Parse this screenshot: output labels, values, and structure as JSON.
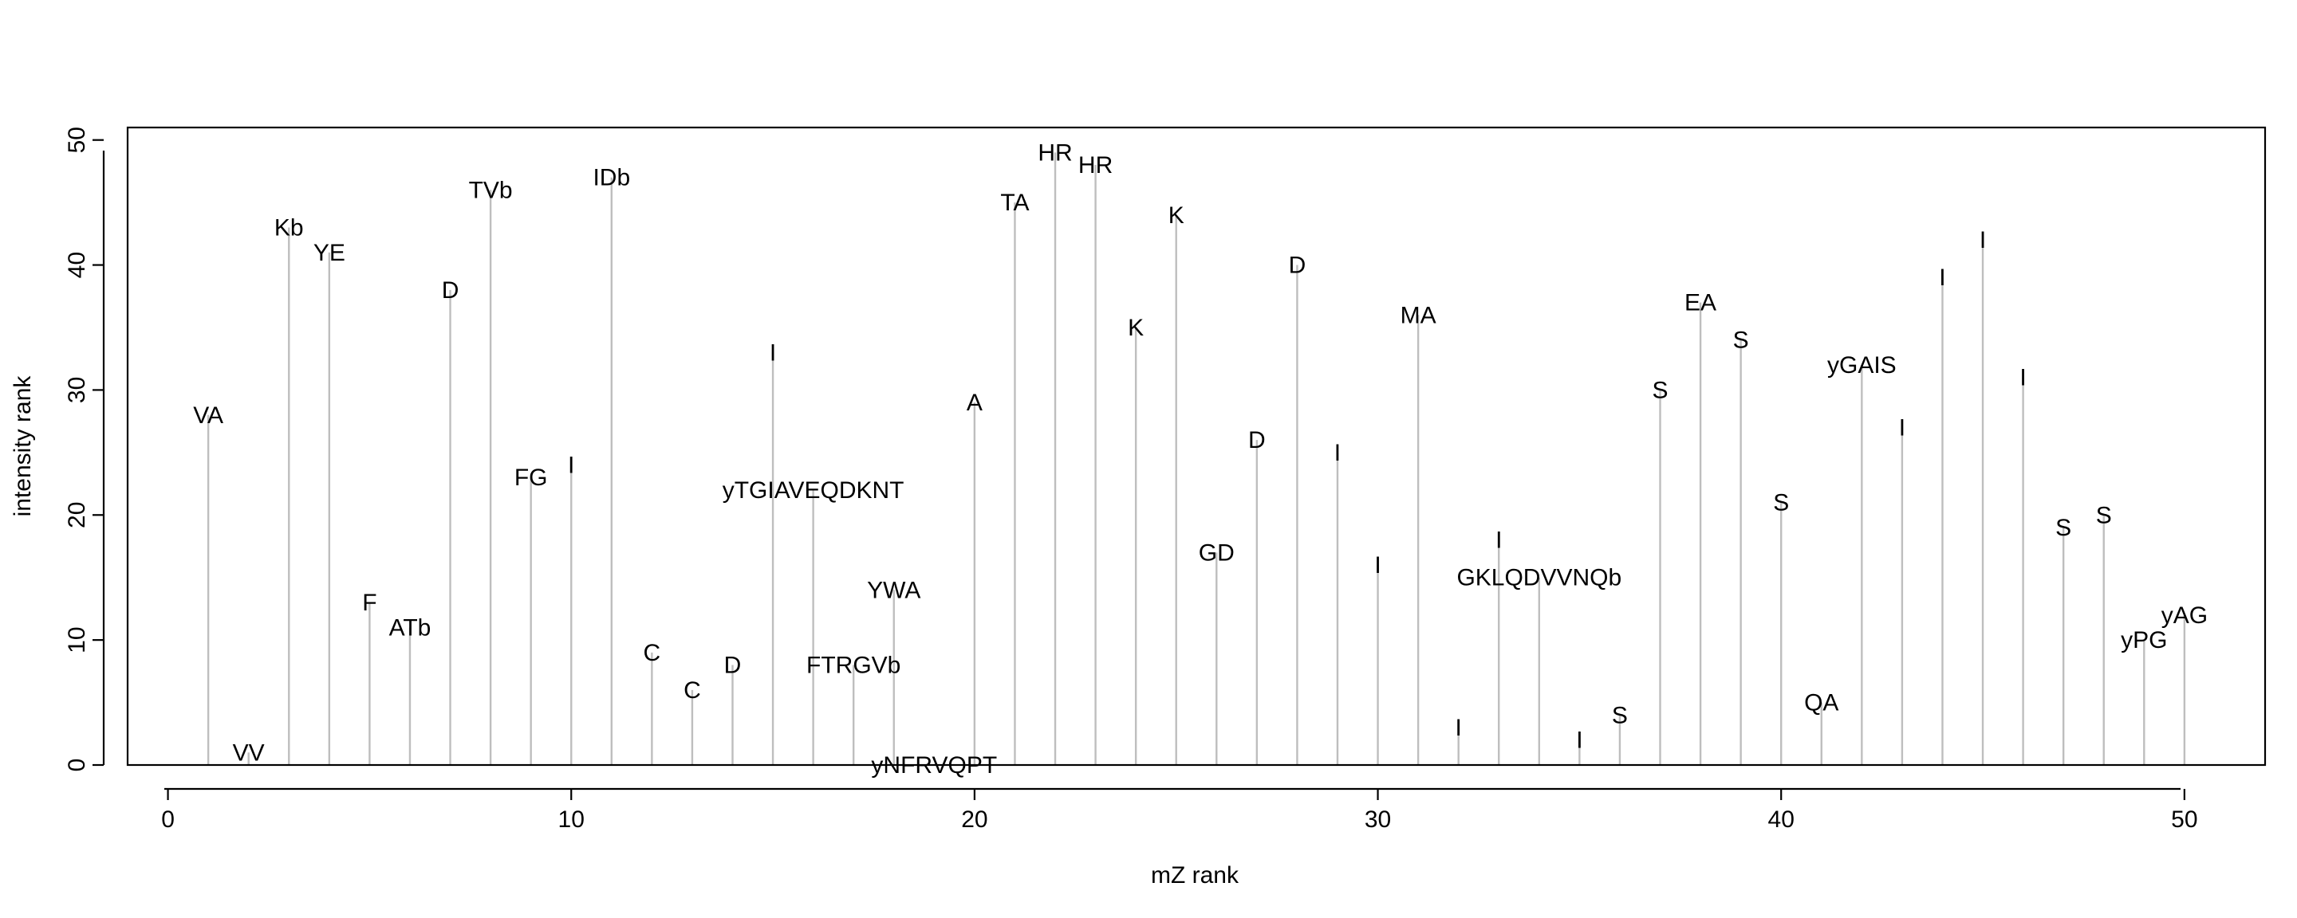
{
  "chart_data": {
    "type": "bar",
    "title": "",
    "xlabel": "mZ rank",
    "ylabel": "intensity rank",
    "xlim": [
      -1,
      52
    ],
    "ylim": [
      0,
      51
    ],
    "xticks": [
      0,
      10,
      20,
      30,
      40,
      50
    ],
    "yticks": [
      0,
      10,
      20,
      30,
      40,
      50
    ],
    "grid": false,
    "legend": "none",
    "stem_color": "#bebebe",
    "points": [
      {
        "x": 1,
        "y": 28,
        "label": "VA"
      },
      {
        "x": 2,
        "y": 1,
        "label": "VV"
      },
      {
        "x": 3,
        "y": 43,
        "label": "Kb"
      },
      {
        "x": 4,
        "y": 41,
        "label": "YE"
      },
      {
        "x": 5,
        "y": 13,
        "label": "F"
      },
      {
        "x": 6,
        "y": 11,
        "label": "ATb"
      },
      {
        "x": 7,
        "y": 38,
        "label": "D"
      },
      {
        "x": 8,
        "y": 46,
        "label": "TVb"
      },
      {
        "x": 9,
        "y": 23,
        "label": "FG"
      },
      {
        "x": 10,
        "y": 24,
        "label": "I"
      },
      {
        "x": 11,
        "y": 47,
        "label": "IDb"
      },
      {
        "x": 12,
        "y": 9,
        "label": "C"
      },
      {
        "x": 13,
        "y": 6,
        "label": "C"
      },
      {
        "x": 14,
        "y": 8,
        "label": "D"
      },
      {
        "x": 15,
        "y": 33,
        "label": "I"
      },
      {
        "x": 16,
        "y": 22,
        "label": "yTGIAVEQDKNT"
      },
      {
        "x": 17,
        "y": 8,
        "label": "FTRGVb"
      },
      {
        "x": 18,
        "y": 14,
        "label": "YWA"
      },
      {
        "x": 19,
        "y": 0,
        "label": "yNFRVQPT"
      },
      {
        "x": 20,
        "y": 29,
        "label": "A"
      },
      {
        "x": 21,
        "y": 45,
        "label": "TA"
      },
      {
        "x": 22,
        "y": 49,
        "label": "HR"
      },
      {
        "x": 23,
        "y": 48,
        "label": "HR"
      },
      {
        "x": 24,
        "y": 35,
        "label": "K"
      },
      {
        "x": 25,
        "y": 44,
        "label": "K"
      },
      {
        "x": 26,
        "y": 17,
        "label": "GD"
      },
      {
        "x": 27,
        "y": 26,
        "label": "D"
      },
      {
        "x": 28,
        "y": 40,
        "label": "D"
      },
      {
        "x": 29,
        "y": 25,
        "label": "I"
      },
      {
        "x": 30,
        "y": 16,
        "label": "I"
      },
      {
        "x": 31,
        "y": 36,
        "label": "MA"
      },
      {
        "x": 32,
        "y": 3,
        "label": "I"
      },
      {
        "x": 33,
        "y": 18,
        "label": "I"
      },
      {
        "x": 34,
        "y": 15,
        "label": "GKLQDVVNQb"
      },
      {
        "x": 35,
        "y": 2,
        "label": "I"
      },
      {
        "x": 36,
        "y": 4,
        "label": "S"
      },
      {
        "x": 37,
        "y": 30,
        "label": "S"
      },
      {
        "x": 38,
        "y": 37,
        "label": "EA"
      },
      {
        "x": 39,
        "y": 34,
        "label": "S"
      },
      {
        "x": 40,
        "y": 21,
        "label": "S"
      },
      {
        "x": 41,
        "y": 5,
        "label": "QA"
      },
      {
        "x": 42,
        "y": 32,
        "label": "yGAIS"
      },
      {
        "x": 43,
        "y": 27,
        "label": "I"
      },
      {
        "x": 44,
        "y": 39,
        "label": "I"
      },
      {
        "x": 45,
        "y": 42,
        "label": "I"
      },
      {
        "x": 46,
        "y": 31,
        "label": "I"
      },
      {
        "x": 47,
        "y": 19,
        "label": "S"
      },
      {
        "x": 48,
        "y": 20,
        "label": "S"
      },
      {
        "x": 49,
        "y": 10,
        "label": "yPG"
      },
      {
        "x": 50,
        "y": 12,
        "label": "yAG"
      }
    ]
  }
}
